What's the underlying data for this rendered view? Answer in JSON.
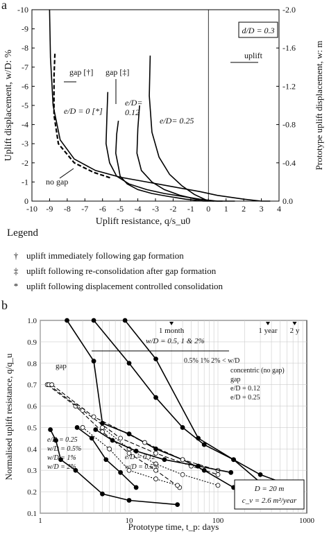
{
  "chart_data": [
    {
      "type": "line",
      "panel_label": "a",
      "xlabel": "Uplift resistance, q/s_u0",
      "ylabel": "Uplift displacement, w/D: %",
      "y2label": "Prototype uplift displacement, w: m",
      "xlim": [
        -10,
        4
      ],
      "ylim": [
        0,
        -10
      ],
      "y2lim": [
        0.0,
        -2.0
      ],
      "x_ticks": [
        "-10",
        "-9",
        "-8",
        "-7",
        "-6",
        "-5",
        "-4",
        "-3",
        "-2",
        "-1",
        "0",
        "1",
        "2",
        "3",
        "4"
      ],
      "y_ticks": [
        "0",
        "-1",
        "-2",
        "-3",
        "-4",
        "-5",
        "-6",
        "-7",
        "-8",
        "-9",
        "-10"
      ],
      "y2_ticks": [
        "0.0",
        "-0.4",
        "-0.8",
        "-1.2",
        "-1.6",
        "-2.0"
      ],
      "box_label": "d/D = 0.3",
      "annotations": [
        "uplift",
        "gap [†]",
        "gap [‡]",
        "e/D = 0 [*]",
        "e/D= 0.12",
        "e/D= 0.25",
        "no gap"
      ],
      "series": [
        {
          "name": "no gap",
          "style": "solid",
          "x": [
            -9.0,
            -8.95,
            -8.8,
            -8.4,
            -7.6,
            -6.4,
            -5.0,
            -3.5,
            -2.0,
            -0.5,
            0.5,
            2.0,
            3.0,
            3.5
          ],
          "y": [
            -10.0,
            -7.5,
            -5.0,
            -3.2,
            -2.2,
            -1.6,
            -1.25,
            -1.0,
            -0.75,
            -0.5,
            -0.3,
            -0.1,
            0.0,
            0.0
          ]
        },
        {
          "name": "gap [†]",
          "style": "dashed",
          "x": [
            -8.7,
            -8.75,
            -8.75,
            -8.5,
            -7.6,
            -6.5,
            -5.5
          ],
          "y": [
            -7.7,
            -6.5,
            -4.5,
            -3.0,
            -2.0,
            -1.5,
            -1.2
          ]
        },
        {
          "name": "e/D = 0 [*]",
          "style": "solid",
          "x": [
            -5.7,
            -5.75,
            -5.8,
            -5.6,
            -5.2,
            -4.5,
            -3.5,
            -2.5,
            -1.5,
            -0.5,
            0.5,
            1.5
          ],
          "y": [
            -5.7,
            -4.5,
            -3.0,
            -2.0,
            -1.3,
            -0.9,
            -0.6,
            -0.4,
            -0.25,
            -0.1,
            0.0,
            0.0
          ]
        },
        {
          "name": "gap [‡]",
          "style": "solid",
          "x": [
            -5.1,
            -5.2,
            -5.25,
            -5.1,
            -5.0,
            -4.6,
            -4.0,
            -3.2,
            -2.3,
            -1.3,
            -0.3,
            0.8
          ],
          "y": [
            -4.2,
            -3.5,
            -2.5,
            -1.8,
            -1.3,
            -0.9,
            -0.6,
            -0.4,
            -0.25,
            -0.1,
            0.0,
            0.0
          ]
        },
        {
          "name": "e/D = 0.12",
          "style": "solid",
          "x": [
            -3.9,
            -4.0,
            -4.05,
            -3.8,
            -3.2,
            -2.5,
            -1.6,
            -0.7,
            0.3
          ],
          "y": [
            -5.0,
            -3.8,
            -2.5,
            -1.6,
            -1.0,
            -0.6,
            -0.3,
            -0.1,
            0.0
          ]
        },
        {
          "name": "e/D = 0.25",
          "style": "solid",
          "x": [
            -3.3,
            -3.35,
            -3.2,
            -2.8,
            -2.2,
            -1.5,
            -0.8,
            0.0
          ],
          "y": [
            -7.6,
            -5.5,
            -3.6,
            -2.3,
            -1.4,
            -0.8,
            -0.35,
            0.0
          ]
        }
      ]
    },
    {
      "type": "line",
      "panel_label": "b",
      "xscale": "log",
      "xlabel": "Prototype time, t_p: days",
      "ylabel": "Normalised uplift resistance, q/q_u",
      "xlim": [
        1,
        1000
      ],
      "ylim": [
        0.1,
        1.0
      ],
      "x_ticks": [
        "1",
        "10",
        "100",
        "1000"
      ],
      "y_ticks": [
        "0.1",
        "0.2",
        "0.3",
        "0.4",
        "0.5",
        "0.6",
        "0.7",
        "0.8",
        "0.9",
        "1.0"
      ],
      "time_markers": [
        {
          "label": "1 month",
          "x": 30
        },
        {
          "label": "1 year",
          "x": 365
        },
        {
          "label": "2 y",
          "x": 730
        }
      ],
      "arrow_label": "w/D = 0.5, 1 & 2%",
      "legend_header": [
        "0.5%",
        "1%",
        "2% < w/D"
      ],
      "legend_rows": [
        "concentric (no gap)",
        "gap",
        "e/D = 0.12",
        "e/D = 0.25"
      ],
      "info_box": [
        "D = 20 m",
        "c_v = 2.6 m²/year"
      ],
      "annotations": [
        "gap",
        "e/D = 0.25",
        "w/D = 0.5%",
        "w/D = 1%",
        "w/D = 2%",
        "e/D = 0.12",
        "w/D = 0.5%"
      ],
      "series": [
        {
          "name": "concentric 0.5%",
          "style": "solid",
          "x": [
            2,
            4,
            5,
            10,
            20,
            40,
            70,
            150
          ],
          "y": [
            1.0,
            0.81,
            0.52,
            0.47,
            0.4,
            0.35,
            0.3,
            0.22
          ]
        },
        {
          "name": "concentric 1%",
          "style": "solid",
          "x": [
            4,
            10,
            20,
            40,
            70,
            150,
            350
          ],
          "y": [
            1.0,
            0.8,
            0.64,
            0.5,
            0.42,
            0.35,
            0.22
          ]
        },
        {
          "name": "concentric 2%",
          "style": "solid",
          "x": [
            9,
            20,
            60,
            150,
            300,
            750
          ],
          "y": [
            1.0,
            0.82,
            0.45,
            0.35,
            0.28,
            0.22
          ]
        },
        {
          "name": "gap 0.5%",
          "style": "dashed",
          "x": [
            1.2,
            2.5,
            5,
            10,
            20,
            37
          ],
          "y": [
            0.7,
            0.6,
            0.48,
            0.38,
            0.3,
            0.22
          ]
        },
        {
          "name": "gap 1%",
          "style": "dashed",
          "x": [
            1.25,
            3,
            8,
            20,
            50,
            100
          ],
          "y": [
            0.7,
            0.58,
            0.45,
            0.38,
            0.32,
            0.28
          ]
        },
        {
          "name": "gap 2%",
          "style": "dashed",
          "x": [
            1.35,
            4,
            15,
            40,
            100
          ],
          "y": [
            0.7,
            0.55,
            0.43,
            0.35,
            0.3
          ]
        },
        {
          "name": "e/D = 0.12 0.5%",
          "style": "dotted",
          "x": [
            3,
            6,
            10,
            20,
            35
          ],
          "y": [
            0.5,
            0.4,
            0.3,
            0.26,
            0.23
          ]
        },
        {
          "name": "e/D = 0.12 1%",
          "style": "dotted",
          "x": [
            5,
            10,
            20,
            40,
            100
          ],
          "y": [
            0.5,
            0.4,
            0.33,
            0.28,
            0.23
          ]
        },
        {
          "name": "e/D = 0.25 0.5%",
          "style": "solid",
          "x": [
            1.3,
            1.5,
            1.7,
            2.5,
            5,
            10,
            35
          ],
          "y": [
            0.49,
            0.44,
            0.35,
            0.3,
            0.19,
            0.16,
            0.14
          ]
        },
        {
          "name": "e/D = 0.25 1%",
          "style": "solid",
          "x": [
            2.6,
            3.8,
            5.5,
            8,
            12
          ],
          "y": [
            0.5,
            0.45,
            0.35,
            0.29,
            0.22
          ]
        },
        {
          "name": "e/D = 0.25 2%",
          "style": "solid",
          "x": [
            4.2,
            6.5,
            12,
            25,
            60,
            140
          ],
          "y": [
            0.49,
            0.44,
            0.39,
            0.35,
            0.32,
            0.29
          ]
        }
      ]
    }
  ],
  "legend": {
    "title": "Legend",
    "items": [
      {
        "symbol": "†",
        "text": "uplift immediately following gap formation"
      },
      {
        "symbol": "‡",
        "text": "uplift following re-consolidation after gap formation"
      },
      {
        "symbol": "*",
        "text": "uplift following displacement controlled consolidation"
      }
    ]
  }
}
